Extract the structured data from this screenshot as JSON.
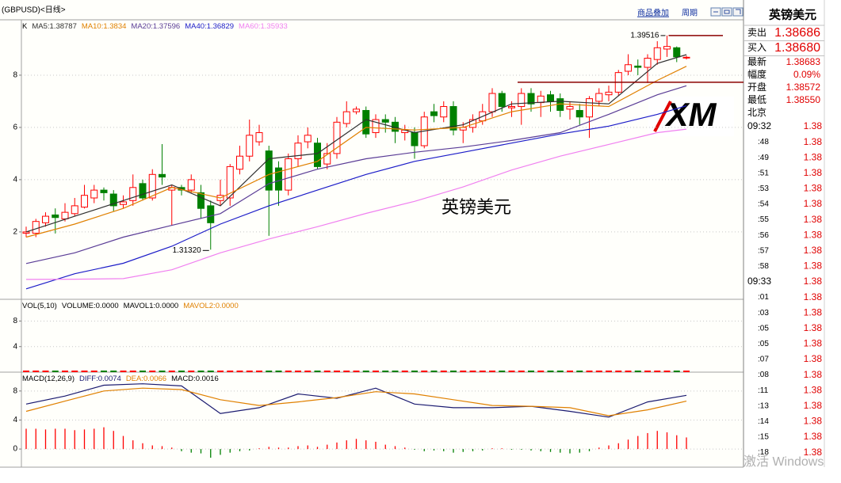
{
  "header": {
    "symbol": "(GBPUSD)<日线>",
    "buttons": [
      "商品叠加",
      "周期"
    ]
  },
  "legend_separator": ":",
  "logo": "XM",
  "os_watermark": "激活 Windows",
  "quote_panel": {
    "title": "英镑美元",
    "rows": [
      [
        "卖出",
        "1.38686"
      ],
      [
        "买入",
        "1.38680"
      ],
      [
        "最新",
        "1.38683"
      ],
      [
        "幅度",
        "0.09%"
      ],
      [
        "开盘",
        "1.38572"
      ],
      [
        "最低",
        "1.38550"
      ]
    ],
    "ticks_header": "北京",
    "ticks": [
      [
        "09:32",
        "1.38"
      ],
      [
        ":48",
        "1.38"
      ],
      [
        ":49",
        "1.38"
      ],
      [
        ":51",
        "1.38"
      ],
      [
        ":53",
        "1.38"
      ],
      [
        ":54",
        "1.38"
      ],
      [
        ":55",
        "1.38"
      ],
      [
        ":56",
        "1.38"
      ],
      [
        ":57",
        "1.38"
      ],
      [
        ":58",
        "1.38"
      ],
      [
        "09:33",
        "1.38"
      ],
      [
        ":01",
        "1.38"
      ],
      [
        ":03",
        "1.38"
      ],
      [
        ":05",
        "1.38"
      ],
      [
        ":05",
        "1.38"
      ],
      [
        ":07",
        "1.38"
      ],
      [
        ":08",
        "1.38"
      ],
      [
        ":11",
        "1.38"
      ],
      [
        ":13",
        "1.38"
      ],
      [
        ":14",
        "1.38"
      ],
      [
        ":15",
        "1.38"
      ],
      [
        ":18",
        "1.38"
      ]
    ]
  },
  "chart_data": [
    {
      "type": "candlestick",
      "title": "K",
      "watermark": "英镑美元",
      "up_color": "#ff0000",
      "down_color": "#008000",
      "ylim": [
        1.2942,
        1.4012
      ],
      "yticks": [
        {
          "value": 1.38,
          "label": "8"
        },
        {
          "value": 1.36,
          "label": "6"
        },
        {
          "value": 1.34,
          "label": "4"
        },
        {
          "value": 1.32,
          "label": "2"
        }
      ],
      "grid": true,
      "hline": 1.3773,
      "annotations": [
        {
          "label": "1.39516"
        },
        {
          "label": "1.31320"
        }
      ],
      "ohlc": [
        [
          1.3195,
          1.322,
          1.318,
          1.32
        ],
        [
          1.3195,
          1.325,
          1.318,
          1.324
        ],
        [
          1.3235,
          1.3275,
          1.322,
          1.326
        ],
        [
          1.3265,
          1.329,
          1.3194,
          1.3255
        ],
        [
          1.325,
          1.331,
          1.324,
          1.3275
        ],
        [
          1.327,
          1.333,
          1.326,
          1.33
        ],
        [
          1.3295,
          1.338,
          1.329,
          1.334
        ],
        [
          1.333,
          1.338,
          1.331,
          1.336
        ],
        [
          1.336,
          1.337,
          1.332,
          1.335
        ],
        [
          1.3345,
          1.336,
          1.328,
          1.33
        ],
        [
          1.3305,
          1.334,
          1.329,
          1.3315
        ],
        [
          1.332,
          1.342,
          1.33,
          1.337
        ],
        [
          1.3385,
          1.34,
          1.332,
          1.333
        ],
        [
          1.333,
          1.344,
          1.332,
          1.342
        ],
        [
          1.342,
          1.3536,
          1.338,
          1.341
        ],
        [
          1.336,
          1.338,
          1.3225,
          1.337
        ],
        [
          1.337,
          1.338,
          1.334,
          1.336
        ],
        [
          1.336,
          1.342,
          1.335,
          1.34
        ],
        [
          1.335,
          1.338,
          1.325,
          1.329
        ],
        [
          1.33,
          1.332,
          1.3132,
          1.3235
        ],
        [
          1.332,
          1.34,
          1.33,
          1.334
        ],
        [
          1.333,
          1.346,
          1.33,
          1.345
        ],
        [
          1.344,
          1.353,
          1.342,
          1.349
        ],
        [
          1.349,
          1.363,
          1.347,
          1.357
        ],
        [
          1.3545,
          1.361,
          1.353,
          1.358
        ],
        [
          1.351,
          1.353,
          1.3185,
          1.336
        ],
        [
          1.3445,
          1.347,
          1.33,
          1.336
        ],
        [
          1.336,
          1.35,
          1.334,
          1.348
        ],
        [
          1.348,
          1.357,
          1.345,
          1.354
        ],
        [
          1.3545,
          1.36,
          1.352,
          1.357
        ],
        [
          1.354,
          1.356,
          1.344,
          1.345
        ],
        [
          1.346,
          1.354,
          1.344,
          1.35
        ],
        [
          1.35,
          1.364,
          1.348,
          1.362
        ],
        [
          1.3615,
          1.37,
          1.36,
          1.366
        ],
        [
          1.366,
          1.368,
          1.365,
          1.367
        ],
        [
          1.3665,
          1.368,
          1.356,
          1.3575
        ],
        [
          1.358,
          1.365,
          1.356,
          1.363
        ],
        [
          1.363,
          1.365,
          1.358,
          1.362
        ],
        [
          1.362,
          1.364,
          1.354,
          1.3585
        ],
        [
          1.358,
          1.361,
          1.355,
          1.359
        ],
        [
          1.358,
          1.36,
          1.348,
          1.353
        ],
        [
          1.353,
          1.366,
          1.352,
          1.364
        ],
        [
          1.366,
          1.369,
          1.362,
          1.3645
        ],
        [
          1.364,
          1.37,
          1.362,
          1.368
        ],
        [
          1.368,
          1.37,
          1.357,
          1.359
        ],
        [
          1.359,
          1.362,
          1.354,
          1.36
        ],
        [
          1.36,
          1.365,
          1.358,
          1.363
        ],
        [
          1.3625,
          1.369,
          1.361,
          1.366
        ],
        [
          1.366,
          1.375,
          1.364,
          1.373
        ],
        [
          1.373,
          1.374,
          1.366,
          1.368
        ],
        [
          1.3675,
          1.37,
          1.364,
          1.368
        ],
        [
          1.368,
          1.375,
          1.361,
          1.373
        ],
        [
          1.373,
          1.375,
          1.366,
          1.369
        ],
        [
          1.3695,
          1.374,
          1.364,
          1.372
        ],
        [
          1.3725,
          1.374,
          1.366,
          1.37
        ],
        [
          1.371,
          1.373,
          1.364,
          1.3665
        ],
        [
          1.367,
          1.37,
          1.363,
          1.368
        ],
        [
          1.3665,
          1.369,
          1.361,
          1.364
        ],
        [
          1.364,
          1.372,
          1.356,
          1.371
        ],
        [
          1.37,
          1.375,
          1.368,
          1.373
        ],
        [
          1.3725,
          1.376,
          1.37,
          1.3735
        ],
        [
          1.3735,
          1.382,
          1.372,
          1.381
        ],
        [
          1.3815,
          1.388,
          1.38,
          1.384
        ],
        [
          1.3835,
          1.386,
          1.38,
          1.383
        ],
        [
          1.383,
          1.388,
          1.377,
          1.3865
        ],
        [
          1.386,
          1.393,
          1.384,
          1.3905
        ],
        [
          1.39,
          1.39516,
          1.387,
          1.391
        ],
        [
          1.3905,
          1.391,
          1.385,
          1.387
        ],
        [
          1.3868,
          1.3875,
          1.386,
          1.38686
        ]
      ],
      "series": [
        {
          "name": "MA5",
          "color": "#303030",
          "x": [
            0,
            5,
            10,
            15,
            20,
            25,
            30,
            35,
            40,
            45,
            50,
            55,
            60,
            65,
            68
          ],
          "values": [
            1.32,
            1.326,
            1.332,
            1.338,
            1.33,
            1.348,
            1.35,
            1.363,
            1.358,
            1.361,
            1.369,
            1.37,
            1.369,
            1.3845,
            1.38787
          ]
        },
        {
          "name": "MA10",
          "color": "#e08000",
          "x": [
            0,
            5,
            10,
            15,
            20,
            25,
            30,
            35,
            40,
            45,
            50,
            55,
            60,
            65,
            68
          ],
          "values": [
            1.318,
            1.323,
            1.329,
            1.337,
            1.333,
            1.342,
            1.347,
            1.36,
            1.359,
            1.36,
            1.366,
            1.369,
            1.368,
            1.378,
            1.3834
          ]
        },
        {
          "name": "MA20",
          "color": "#5a3c96",
          "x": [
            0,
            5,
            10,
            15,
            20,
            25,
            30,
            35,
            40,
            45,
            50,
            55,
            60,
            65,
            68
          ],
          "values": [
            1.3079,
            1.312,
            1.318,
            1.3225,
            1.327,
            1.3385,
            1.344,
            1.348,
            1.3505,
            1.3525,
            1.355,
            1.358,
            1.365,
            1.3725,
            1.37596
          ]
        },
        {
          "name": "MA40",
          "color": "#1c1cc8",
          "x": [
            0,
            5,
            10,
            15,
            20,
            25,
            30,
            35,
            40,
            45,
            50,
            55,
            60,
            65,
            68
          ],
          "values": [
            1.2982,
            1.304,
            1.308,
            1.3145,
            1.323,
            1.33,
            1.336,
            1.342,
            1.347,
            1.3505,
            1.354,
            1.3575,
            1.3605,
            1.365,
            1.36829
          ]
        },
        {
          "name": "MA60",
          "color": "#f080f0",
          "x": [
            0,
            5,
            10,
            15,
            20,
            25,
            30,
            35,
            40,
            45,
            50,
            55,
            60,
            65,
            68
          ],
          "values": [
            1.3018,
            1.3019,
            1.3021,
            1.3055,
            1.312,
            1.3173,
            1.322,
            1.3271,
            1.3317,
            1.3372,
            1.3437,
            1.349,
            1.3535,
            1.358,
            1.35933
          ]
        }
      ]
    },
    {
      "type": "bar",
      "title": "VOL(5,10)",
      "up_color": "#ff0000",
      "down_color": "#008000",
      "ylim": [
        0,
        11.4
      ],
      "yticks": [
        8,
        4
      ],
      "grid": true,
      "legend_items": [
        {
          "name": "VOLUME",
          "color": "#000000",
          "value": 0,
          "label": "0.0000"
        },
        {
          "name": "MAVOL1",
          "color": "#000000",
          "value": 0,
          "label": "0.0000"
        },
        {
          "name": "MAVOL2",
          "color": "#e08000",
          "value": 0,
          "label": "0.0000"
        }
      ],
      "values": [
        0,
        0,
        0,
        0,
        0,
        0,
        0,
        0,
        0,
        0,
        0,
        0,
        0,
        0,
        0,
        0,
        0,
        0,
        0,
        0,
        0,
        0,
        0,
        0,
        0,
        0,
        0,
        0,
        0,
        0,
        0,
        0,
        0,
        0,
        0,
        0,
        0,
        0,
        0,
        0,
        0,
        0,
        0,
        0,
        0,
        0,
        0,
        0,
        0,
        0,
        0,
        0,
        0,
        0,
        0,
        0,
        0,
        0,
        0,
        0,
        0,
        0,
        0,
        0,
        0,
        0,
        0,
        0,
        0
      ]
    },
    {
      "type": "macd",
      "title": "MACD(12,26,9)",
      "up_color": "#ff0000",
      "down_color": "#008000",
      "ylim": [
        -0.0025,
        0.0106
      ],
      "yticks": [
        {
          "value": 0.008,
          "label": "8"
        },
        {
          "value": 0.004,
          "label": "4"
        },
        0
      ],
      "grid": true,
      "bar_name": "MACD",
      "bar_color": "#000000",
      "values": [
        0.0028,
        0.0028,
        0.0027,
        0.0028,
        0.0028,
        0.0026,
        0.0027,
        0.0028,
        0.003,
        0.0025,
        0.0018,
        0.0012,
        0.0008,
        0.0005,
        0.0004,
        0.0002,
        -0.0003,
        -0.0005,
        -0.0006,
        -0.0012,
        -0.0008,
        -0.0005,
        -0.0003,
        -0.0002,
        0.0001,
        0.0003,
        0.0002,
        0.0002,
        0.0004,
        0.0005,
        0.0003,
        0.0006,
        0.0009,
        0.0012,
        0.0014,
        0.0012,
        0.001,
        0.0006,
        0.0004,
        0.0002,
        -0.0001,
        -0.0003,
        -0.0002,
        -0.0003,
        -0.0005,
        -0.0004,
        -0.0003,
        -0.0002,
        0.0001,
        0.0001,
        -0.0001,
        -0.0001,
        -0.0002,
        -0.0003,
        -0.0004,
        -0.0005,
        -0.0006,
        -0.0005,
        -0.0003,
        0.0002,
        0.0005,
        0.0008,
        0.0013,
        0.0018,
        0.0022,
        0.0025,
        0.0023,
        0.0019,
        0.0016
      ],
      "series": [
        {
          "name": "DIFF",
          "color": "#1a1a70",
          "x": [
            0,
            4,
            8,
            12,
            16,
            20,
            24,
            28,
            32,
            36,
            40,
            44,
            48,
            52,
            56,
            60,
            64,
            68
          ],
          "values": [
            0.0062,
            0.0073,
            0.0088,
            0.009,
            0.0087,
            0.0049,
            0.0057,
            0.0076,
            0.007,
            0.0084,
            0.0062,
            0.0057,
            0.0057,
            0.0059,
            0.0052,
            0.0044,
            0.0065,
            0.0074
          ]
        },
        {
          "name": "DEA",
          "color": "#e08000",
          "x": [
            0,
            4,
            8,
            12,
            16,
            20,
            24,
            28,
            32,
            36,
            40,
            44,
            48,
            52,
            56,
            60,
            64,
            68
          ],
          "values": [
            0.0052,
            0.0066,
            0.008,
            0.0084,
            0.0082,
            0.0068,
            0.006,
            0.0065,
            0.0071,
            0.0079,
            0.0076,
            0.0068,
            0.006,
            0.0059,
            0.0057,
            0.0046,
            0.0054,
            0.0066
          ]
        }
      ]
    }
  ]
}
